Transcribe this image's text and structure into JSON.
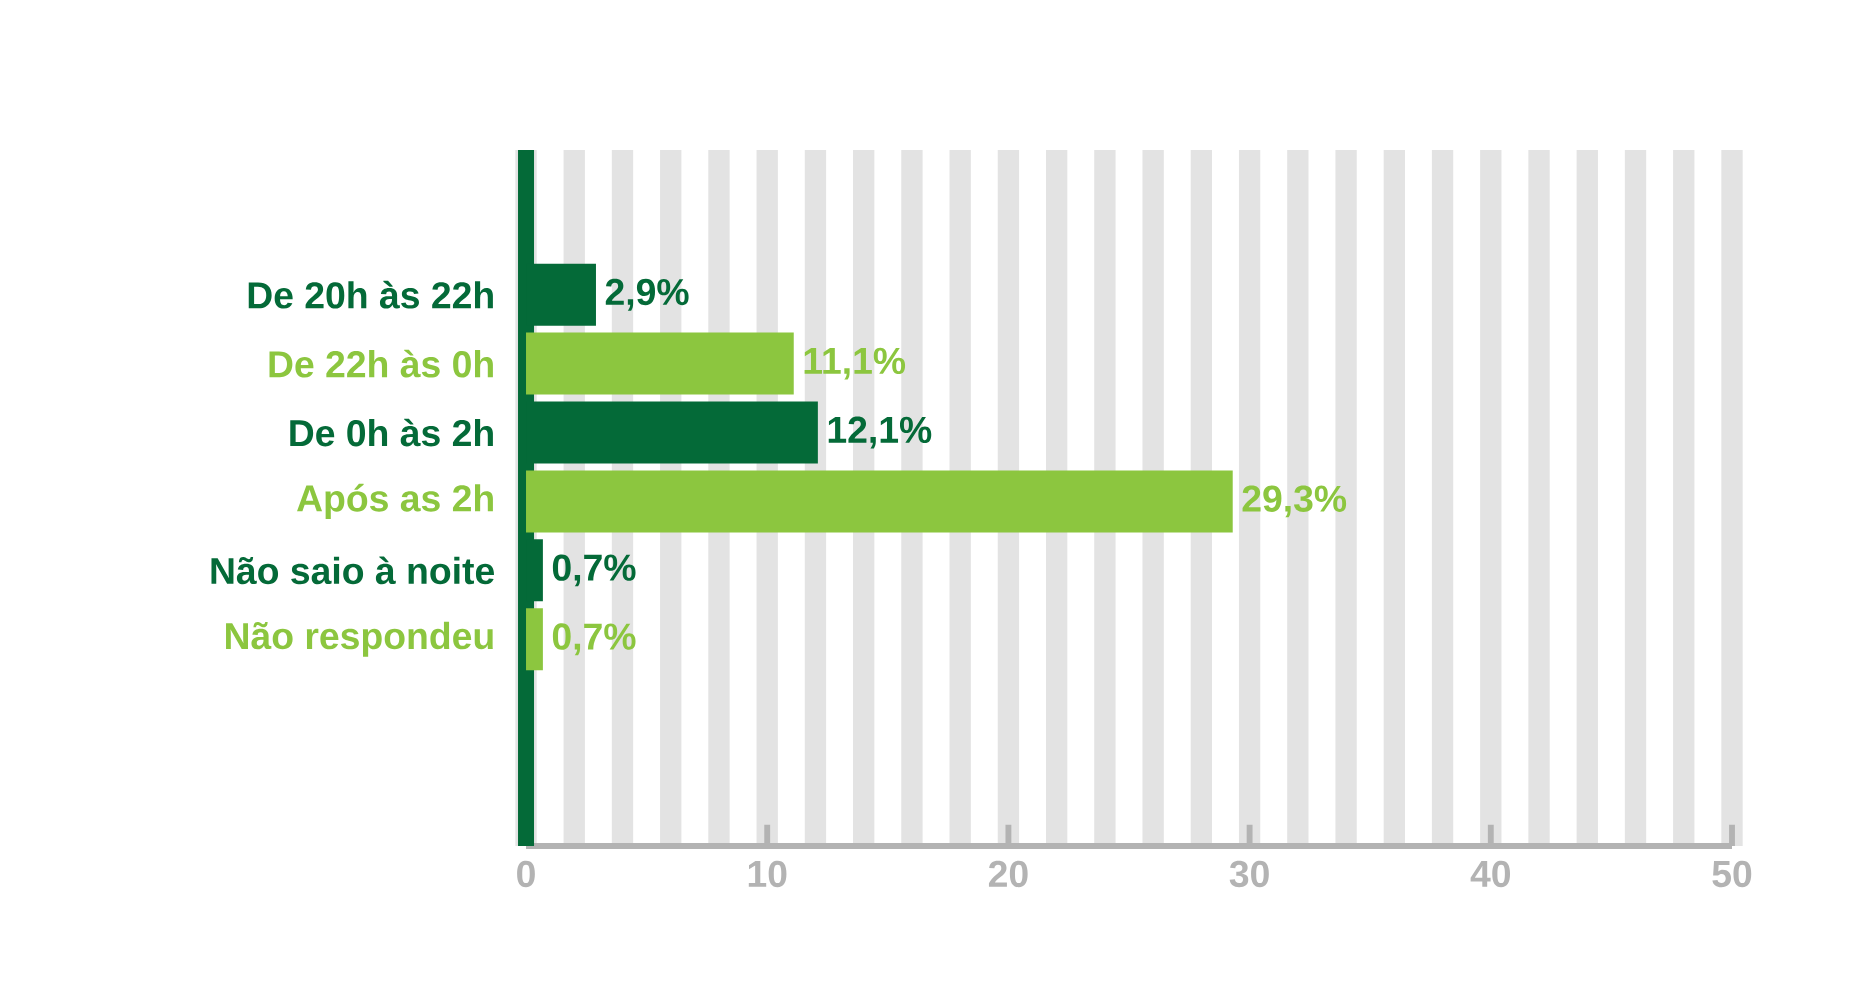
{
  "chart_data": {
    "type": "bar",
    "orientation": "horizontal",
    "categories": [
      "De 20h às 22h",
      "De 22h às 0h",
      "De 0h às 2h",
      "Após as 2h",
      "Não saio à noite",
      "Não respondeu"
    ],
    "values": [
      2.9,
      11.1,
      12.1,
      29.3,
      0.7,
      0.7
    ],
    "colors": [
      "#046a38",
      "#8cc63f",
      "#046a38",
      "#8cc63f",
      "#046a38",
      "#8cc63f"
    ],
    "value_labels": [
      "2,9%",
      "11,1%",
      "12,1%",
      "29,3%",
      "0,7%",
      "0,7%"
    ],
    "xlim": [
      0,
      50
    ],
    "xticks": [
      0,
      10,
      20,
      30,
      40,
      50
    ],
    "grid": "x"
  }
}
